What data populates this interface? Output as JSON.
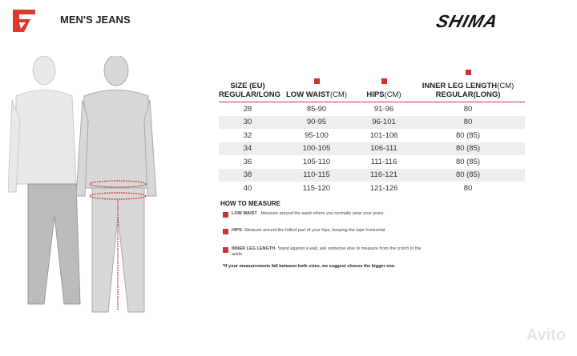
{
  "header": {
    "title": "MEN'S JEANS",
    "brand": "SHIMA"
  },
  "table": {
    "headers": {
      "size": "SIZE (EU)",
      "size_sub": "REGULAR/LONG",
      "waist_badge": "W",
      "waist": "LOW WAIST",
      "waist_unit": "(CM)",
      "hips_badge": "C",
      "hips": "HIPS",
      "hips_unit": "(CM)",
      "leg_badge": "L",
      "leg": "INNER LEG LENGTH",
      "leg_unit": "(CM)",
      "leg_sub": "REGULAR(LONG)"
    },
    "rows": [
      {
        "size": "28",
        "waist": "85-90",
        "hips": "91-96",
        "leg": "80"
      },
      {
        "size": "30",
        "waist": "90-95",
        "hips": "96-101",
        "leg": "80"
      },
      {
        "size": "32",
        "waist": "95-100",
        "hips": "101-106",
        "leg": "80 (85)"
      },
      {
        "size": "34",
        "waist": "100-105",
        "hips": "106-111",
        "leg": "80 (85)"
      },
      {
        "size": "36",
        "waist": "105-110",
        "hips": "111-116",
        "leg": "80 (85)"
      },
      {
        "size": "38",
        "waist": "110-115",
        "hips": "116-121",
        "leg": "80 (85)"
      },
      {
        "size": "40",
        "waist": "115-120",
        "hips": "121-126",
        "leg": "80"
      }
    ]
  },
  "how": {
    "title": "HOW TO MEASURE",
    "items": [
      {
        "badge": "W",
        "label": "LOW WAIST",
        "text": " - Measure around the waist where you normally wear your jeans."
      },
      {
        "badge": "C",
        "label": "HIPS",
        "text": "- Measure around the fullest part of your hips, keeping the tape horizontal."
      },
      {
        "badge": "L",
        "label": "INNER LEG LENGTH",
        "text": "- Stand against a wall, ask someone else to measure from the crotch to the ankle."
      }
    ],
    "note": "*If your measurements fall between both sizes, we suggest choose the bigger one."
  },
  "watermark": "Avito",
  "colors": {
    "accent": "#cc3333"
  }
}
